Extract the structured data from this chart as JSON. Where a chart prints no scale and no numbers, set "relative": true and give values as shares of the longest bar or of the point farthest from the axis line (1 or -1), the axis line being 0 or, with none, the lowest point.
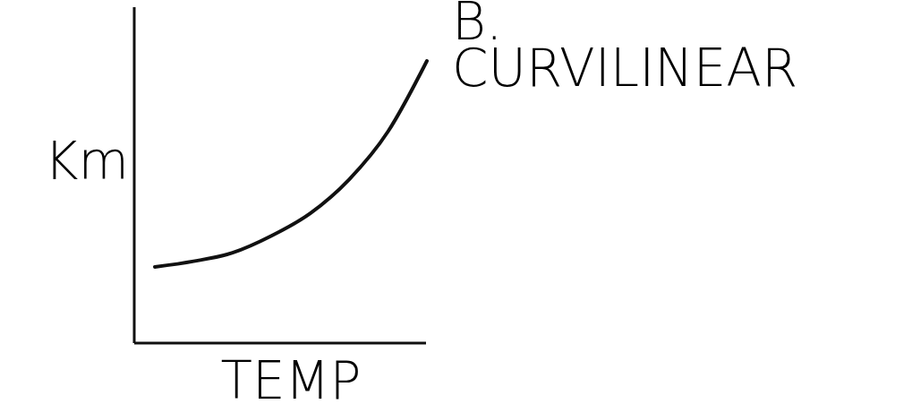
{
  "chart_data": {
    "type": "line",
    "title": "B. CURVILINEAR",
    "xlabel": "TEMP",
    "ylabel": "Km",
    "relative": true,
    "categories": [
      null,
      null,
      null,
      null,
      null,
      null,
      null,
      null
    ],
    "series": [
      {
        "color": "#111111",
        "values": [
          0.27,
          0.29,
          0.32,
          0.38,
          0.46,
          0.58,
          0.75,
          1.0
        ]
      }
    ]
  }
}
